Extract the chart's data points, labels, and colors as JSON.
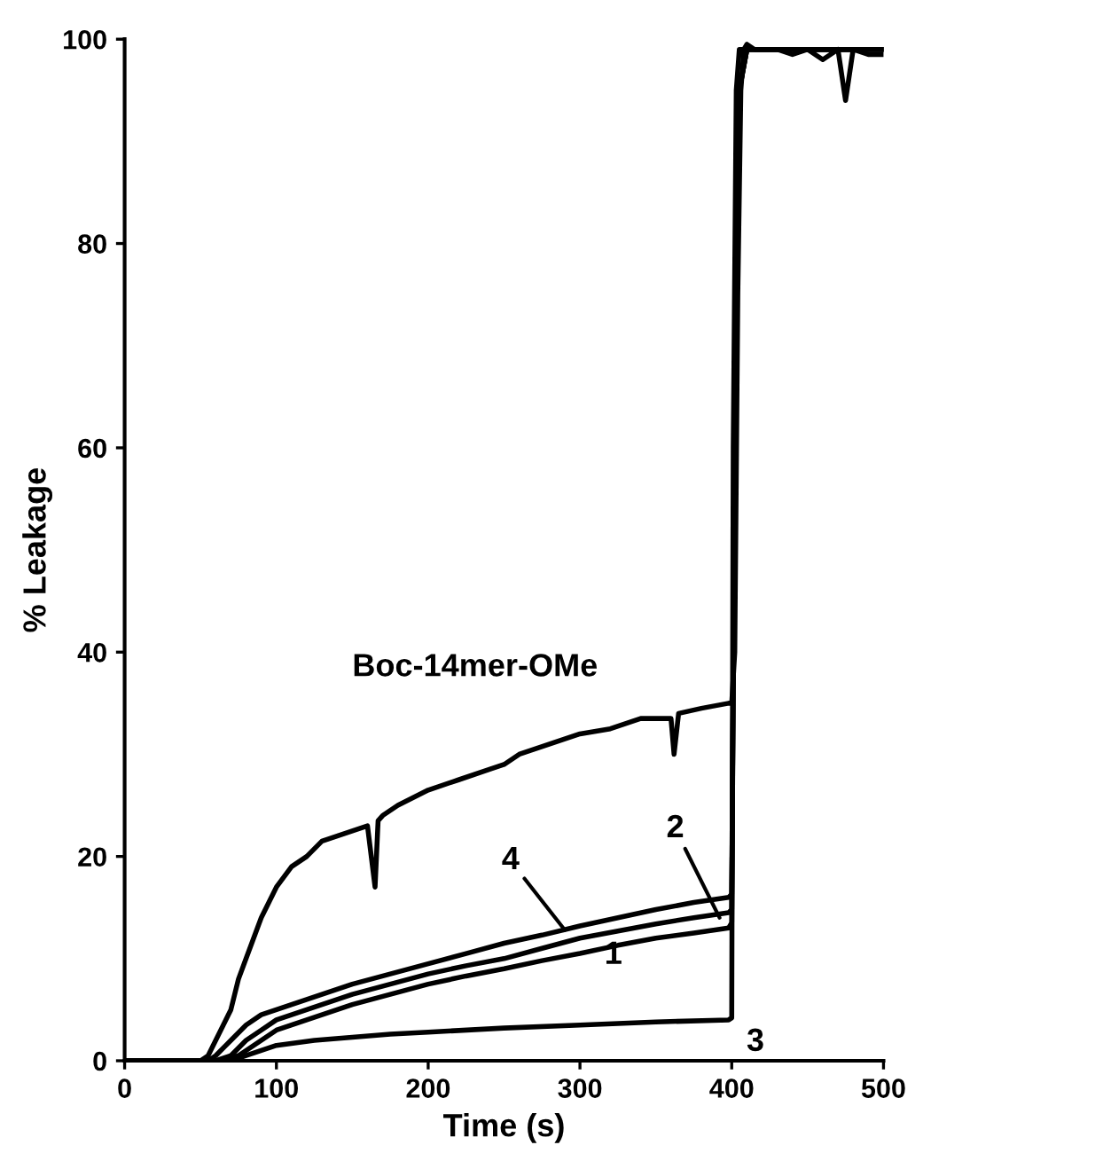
{
  "chart_data": {
    "type": "line",
    "xlabel": "Time (s)",
    "ylabel": "% Leakage",
    "xlim": [
      0,
      500
    ],
    "ylim": [
      0,
      100
    ],
    "xticks": [
      0,
      100,
      200,
      300,
      400,
      500
    ],
    "yticks": [
      0,
      20,
      40,
      60,
      80,
      100
    ],
    "grid": false,
    "marker": "none",
    "line_style": "solid",
    "series": [
      {
        "color": "#000000",
        "x": [
          0,
          50,
          55,
          60,
          65,
          70,
          75,
          80,
          85,
          90,
          95,
          100,
          110,
          120,
          130,
          140,
          150,
          160,
          165,
          167,
          170,
          180,
          200,
          220,
          240,
          250,
          260,
          280,
          300,
          320,
          340,
          360,
          362,
          365,
          380,
          398,
          400,
          402,
          404,
          406,
          408,
          410,
          415,
          420,
          430,
          440,
          450,
          460,
          470,
          475,
          480,
          490,
          500
        ],
        "values": [
          0,
          0,
          0.5,
          2,
          3.5,
          5,
          8,
          10,
          12,
          14,
          15.5,
          17,
          19,
          20,
          21.5,
          22,
          22.5,
          23,
          17,
          23.5,
          24,
          25,
          26.5,
          27.5,
          28.5,
          29,
          30,
          31,
          32,
          32.5,
          33.5,
          33.5,
          30,
          34,
          34.5,
          35,
          35,
          40,
          75,
          95,
          99,
          99.5,
          99,
          99,
          99,
          98.5,
          99,
          98,
          99,
          94,
          99,
          98.5,
          98.5
        ]
      },
      {
        "color": "#000000",
        "x": [
          0,
          55,
          60,
          70,
          80,
          90,
          100,
          120,
          150,
          175,
          200,
          225,
          250,
          275,
          300,
          325,
          350,
          375,
          398,
          400,
          402,
          405,
          410,
          500
        ],
        "values": [
          0,
          0,
          0.5,
          2,
          3.5,
          4.5,
          5,
          6,
          7.5,
          8.5,
          9.5,
          10.5,
          11.5,
          12.3,
          13.2,
          14,
          14.8,
          15.5,
          16,
          16.3,
          60,
          95,
          99,
          99
        ]
      },
      {
        "color": "#000000",
        "x": [
          0,
          60,
          70,
          80,
          90,
          100,
          120,
          150,
          175,
          200,
          225,
          250,
          275,
          300,
          325,
          350,
          375,
          398,
          400,
          402,
          405,
          410,
          500
        ],
        "values": [
          0,
          0,
          0.5,
          2,
          3,
          4,
          5,
          6.5,
          7.5,
          8.5,
          9.3,
          10,
          11,
          12,
          12.7,
          13.4,
          14,
          14.5,
          14.8,
          60,
          95,
          99,
          99
        ]
      },
      {
        "color": "#000000",
        "x": [
          0,
          65,
          75,
          85,
          100,
          120,
          150,
          175,
          200,
          225,
          250,
          275,
          300,
          325,
          350,
          375,
          398,
          400,
          402,
          405,
          410,
          500
        ],
        "values": [
          0,
          0,
          0.5,
          1.5,
          3,
          4,
          5.5,
          6.5,
          7.5,
          8.3,
          9,
          9.8,
          10.5,
          11.3,
          12,
          12.5,
          13,
          13.5,
          60,
          95,
          99,
          99
        ]
      },
      {
        "color": "#000000",
        "x": [
          0,
          70,
          80,
          90,
          100,
          125,
          150,
          175,
          200,
          250,
          300,
          350,
          398,
          400,
          401,
          403,
          405,
          410,
          500
        ],
        "values": [
          0,
          0,
          0.5,
          1,
          1.5,
          2,
          2.3,
          2.6,
          2.8,
          3.2,
          3.5,
          3.8,
          4,
          4.2,
          60,
          95,
          99,
          99,
          99
        ]
      }
    ],
    "annotations": [
      "Boc-14mer-OMe",
      {
        "text": "4",
        "x": 290,
        "y": 12.8
      },
      {
        "text": "2",
        "x": 392,
        "y": 14
      },
      {
        "text": "1",
        "x": 322,
        "y": 10.3
      },
      {
        "text": "3",
        "x": 400,
        "y": 4.2
      }
    ]
  }
}
